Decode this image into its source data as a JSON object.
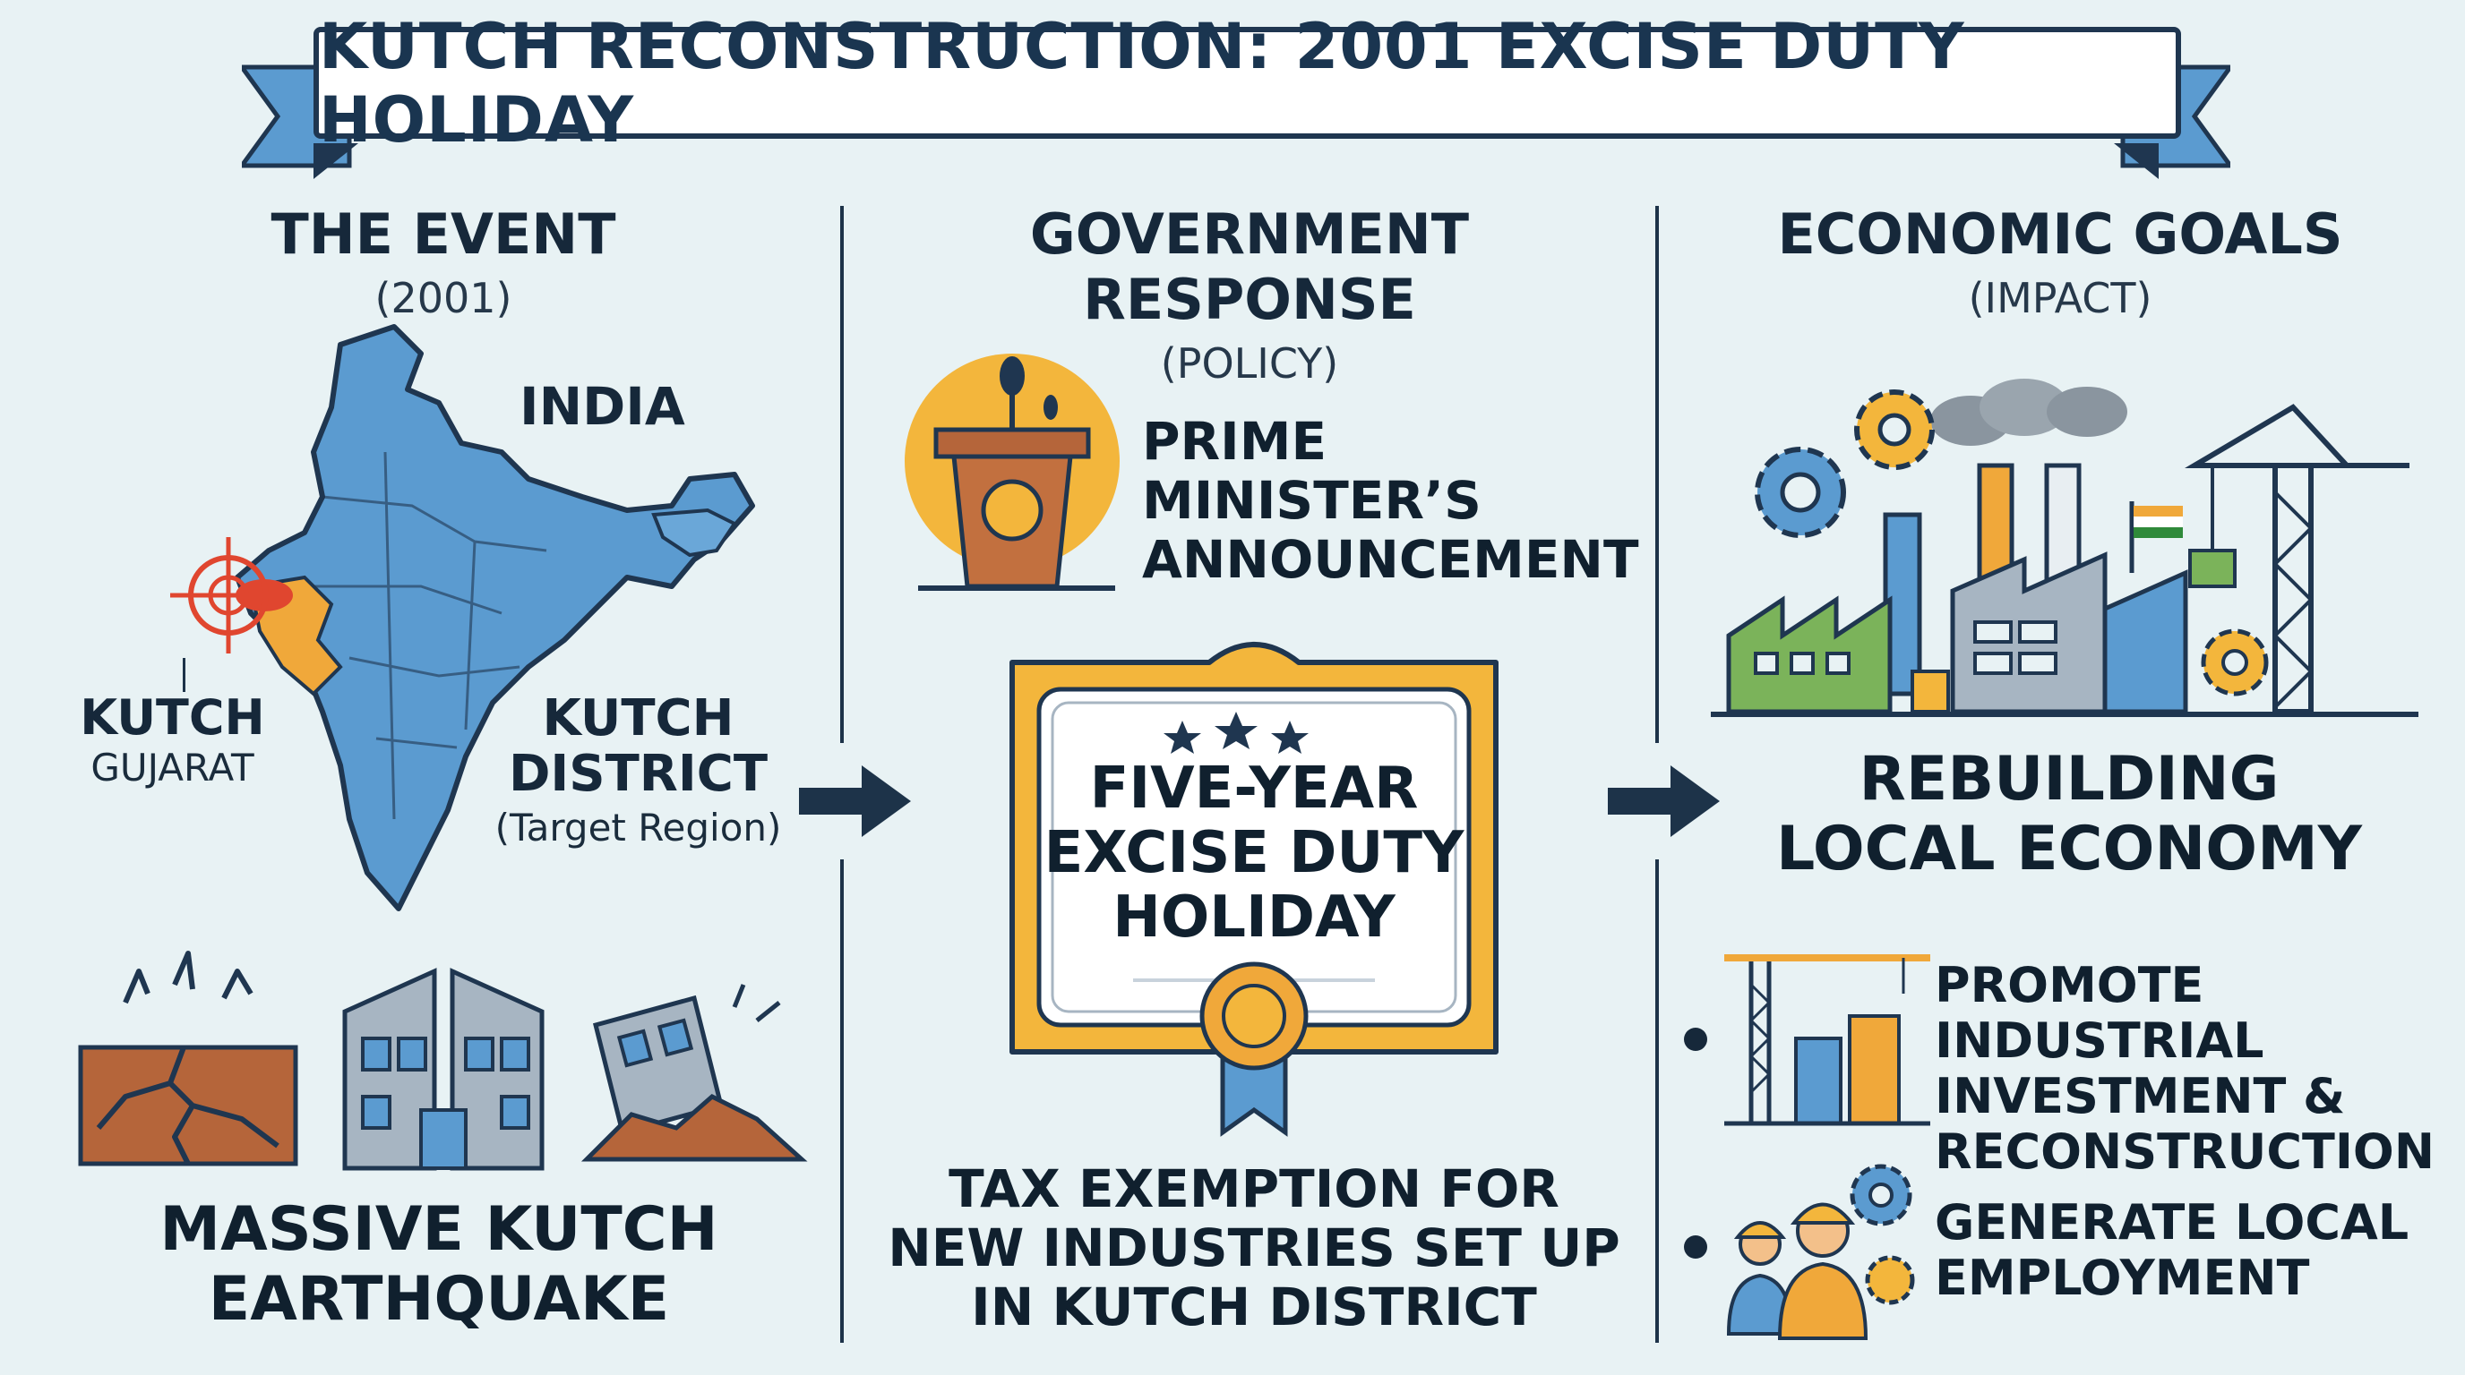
{
  "title": "KUTCH RECONSTRUCTION: 2001 EXCISE DUTY HOLIDAY",
  "columns": {
    "event": {
      "heading": "THE EVENT",
      "subheading": "(2001)",
      "map_label_india": "INDIA",
      "marker_label_line1": "KUTCH",
      "marker_label_line2": "GUJARAT",
      "district_label_line1": "KUTCH",
      "district_label_line2": "DISTRICT",
      "district_label_line3": "(Target Region)",
      "caption_line1": "MASSIVE KUTCH",
      "caption_line2": "EARTHQUAKE"
    },
    "response": {
      "heading": "GOVERNMENT RESPONSE",
      "subheading": "(POLICY)",
      "announcement_line1": "PRIME MINISTER’S",
      "announcement_line2": "ANNOUNCEMENT",
      "certificate_line1": "FIVE-YEAR",
      "certificate_line2": "EXCISE DUTY",
      "certificate_line3": "HOLIDAY",
      "caption_line1": "TAX EXEMPTION FOR",
      "caption_line2": "NEW INDUSTRIES SET UP",
      "caption_line3": "IN KUTCH DISTRICT"
    },
    "goals": {
      "heading": "ECONOMIC GOALS",
      "subheading": "(IMPACT)",
      "main_line1": "REBUILDING",
      "main_line2": "LOCAL ECONOMY",
      "goal1_line1": "PROMOTE INDUSTRIAL",
      "goal1_line2": "INVESTMENT &",
      "goal1_line3": "RECONSTRUCTION",
      "goal2_line1": "GENERATE LOCAL",
      "goal2_line2": "EMPLOYMENT"
    }
  },
  "icons": [
    "india-map-icon",
    "target-crosshair-icon",
    "ground-crack-icon",
    "cracked-building-icon",
    "collapsed-building-icon",
    "podium-icon",
    "certificate-icon",
    "award-ribbon-icon",
    "factory-icon",
    "gear-icon",
    "tower-crane-icon",
    "construction-site-icon",
    "workers-icon",
    "arrow-right-icon",
    "india-flag-icon"
  ],
  "colors": {
    "background": "#e8f2f4",
    "navy": "#1f3650",
    "map_blue": "#5b9bd0",
    "gujarat_orange": "#f0a83a",
    "gold": "#f3b63c",
    "brown": "#b5653a",
    "factory_green": "#7bb35a",
    "accent_red": "#e0462f"
  }
}
